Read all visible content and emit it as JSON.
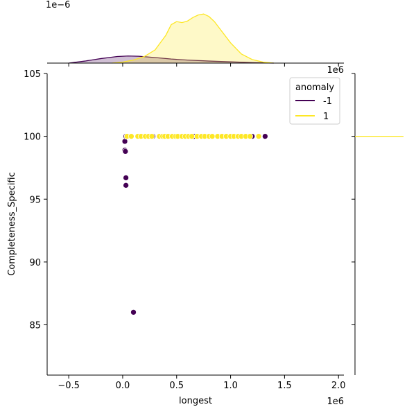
{
  "chart_data": {
    "type": "scatter",
    "title": "",
    "xlabel": "longest",
    "ylabel": "Completeness_Specific",
    "x_offset_label": "1e6",
    "y_offset_label_marginal_right": "1e6",
    "top_marginal_offset_label": "1e−6",
    "xlim": [
      -0.7,
      2.05
    ],
    "ylim": [
      81,
      105
    ],
    "x_ticks": [
      -0.5,
      0.0,
      0.5,
      1.0,
      1.5,
      2.0
    ],
    "x_tick_labels": [
      "−0.5",
      "0.0",
      "0.5",
      "1.0",
      "1.5",
      "2.0"
    ],
    "y_ticks": [
      85,
      90,
      95,
      100,
      105
    ],
    "y_tick_labels": [
      "85",
      "90",
      "95",
      "100",
      "105"
    ],
    "grid": false,
    "legend": {
      "title": "anomaly",
      "placement": "top-right",
      "entries": [
        {
          "label": "-1",
          "color": "#440154"
        },
        {
          "label": "1",
          "color": "#fde725"
        }
      ]
    },
    "series": [
      {
        "name": "-1",
        "color": "#440154",
        "points": [
          [
            0.02,
            99.6
          ],
          [
            0.03,
            100.0
          ],
          [
            0.02,
            98.9
          ],
          [
            0.025,
            98.8
          ],
          [
            0.03,
            96.7
          ],
          [
            0.03,
            96.1
          ],
          [
            0.1,
            86.0
          ],
          [
            0.03,
            100.0
          ],
          [
            0.28,
            100.0
          ],
          [
            0.66,
            100.0
          ],
          [
            1.2,
            100.0
          ],
          [
            1.32,
            100.0
          ]
        ]
      },
      {
        "name": "1",
        "color": "#fde725",
        "points": [
          [
            0.04,
            100.0
          ],
          [
            0.08,
            100.0
          ],
          [
            0.14,
            100.0
          ],
          [
            0.17,
            100.0
          ],
          [
            0.21,
            100.0
          ],
          [
            0.24,
            100.0
          ],
          [
            0.27,
            100.0
          ],
          [
            0.34,
            100.0
          ],
          [
            0.37,
            100.0
          ],
          [
            0.39,
            100.0
          ],
          [
            0.42,
            100.0
          ],
          [
            0.46,
            100.0
          ],
          [
            0.49,
            100.0
          ],
          [
            0.51,
            100.0
          ],
          [
            0.55,
            100.0
          ],
          [
            0.58,
            100.0
          ],
          [
            0.61,
            100.0
          ],
          [
            0.64,
            100.0
          ],
          [
            0.69,
            100.0
          ],
          [
            0.73,
            100.0
          ],
          [
            0.76,
            100.0
          ],
          [
            0.8,
            100.0
          ],
          [
            0.83,
            100.0
          ],
          [
            0.88,
            100.0
          ],
          [
            0.92,
            100.0
          ],
          [
            0.96,
            100.0
          ],
          [
            1.0,
            100.0
          ],
          [
            1.03,
            100.0
          ],
          [
            1.07,
            100.0
          ],
          [
            1.1,
            100.0
          ],
          [
            1.14,
            100.0
          ],
          [
            1.18,
            100.0
          ],
          [
            1.26,
            100.0
          ]
        ]
      }
    ],
    "top_marginal_kde": {
      "density_max": 1.0,
      "series": [
        {
          "name": "-1",
          "color": "#440154",
          "x": [
            -0.5,
            -0.35,
            -0.2,
            -0.05,
            0.05,
            0.15,
            0.3,
            0.45,
            0.6,
            0.8,
            1.0,
            1.2,
            1.4
          ],
          "density": [
            0.0,
            0.04,
            0.09,
            0.13,
            0.14,
            0.135,
            0.11,
            0.08,
            0.06,
            0.04,
            0.025,
            0.01,
            0.0
          ]
        },
        {
          "name": "1",
          "color": "#fde725",
          "x": [
            -0.1,
            0.0,
            0.1,
            0.2,
            0.3,
            0.4,
            0.45,
            0.5,
            0.55,
            0.6,
            0.65,
            0.7,
            0.75,
            0.8,
            0.85,
            0.9,
            1.0,
            1.1,
            1.2,
            1.3,
            1.4
          ],
          "density": [
            0.0,
            0.02,
            0.06,
            0.13,
            0.26,
            0.55,
            0.76,
            0.82,
            0.8,
            0.83,
            0.9,
            0.95,
            0.97,
            0.92,
            0.82,
            0.68,
            0.4,
            0.18,
            0.07,
            0.02,
            0.0
          ]
        }
      ]
    },
    "right_marginal_kde": {
      "series": [
        {
          "name": "1",
          "color": "#fde725",
          "y": 100.0
        }
      ]
    }
  }
}
